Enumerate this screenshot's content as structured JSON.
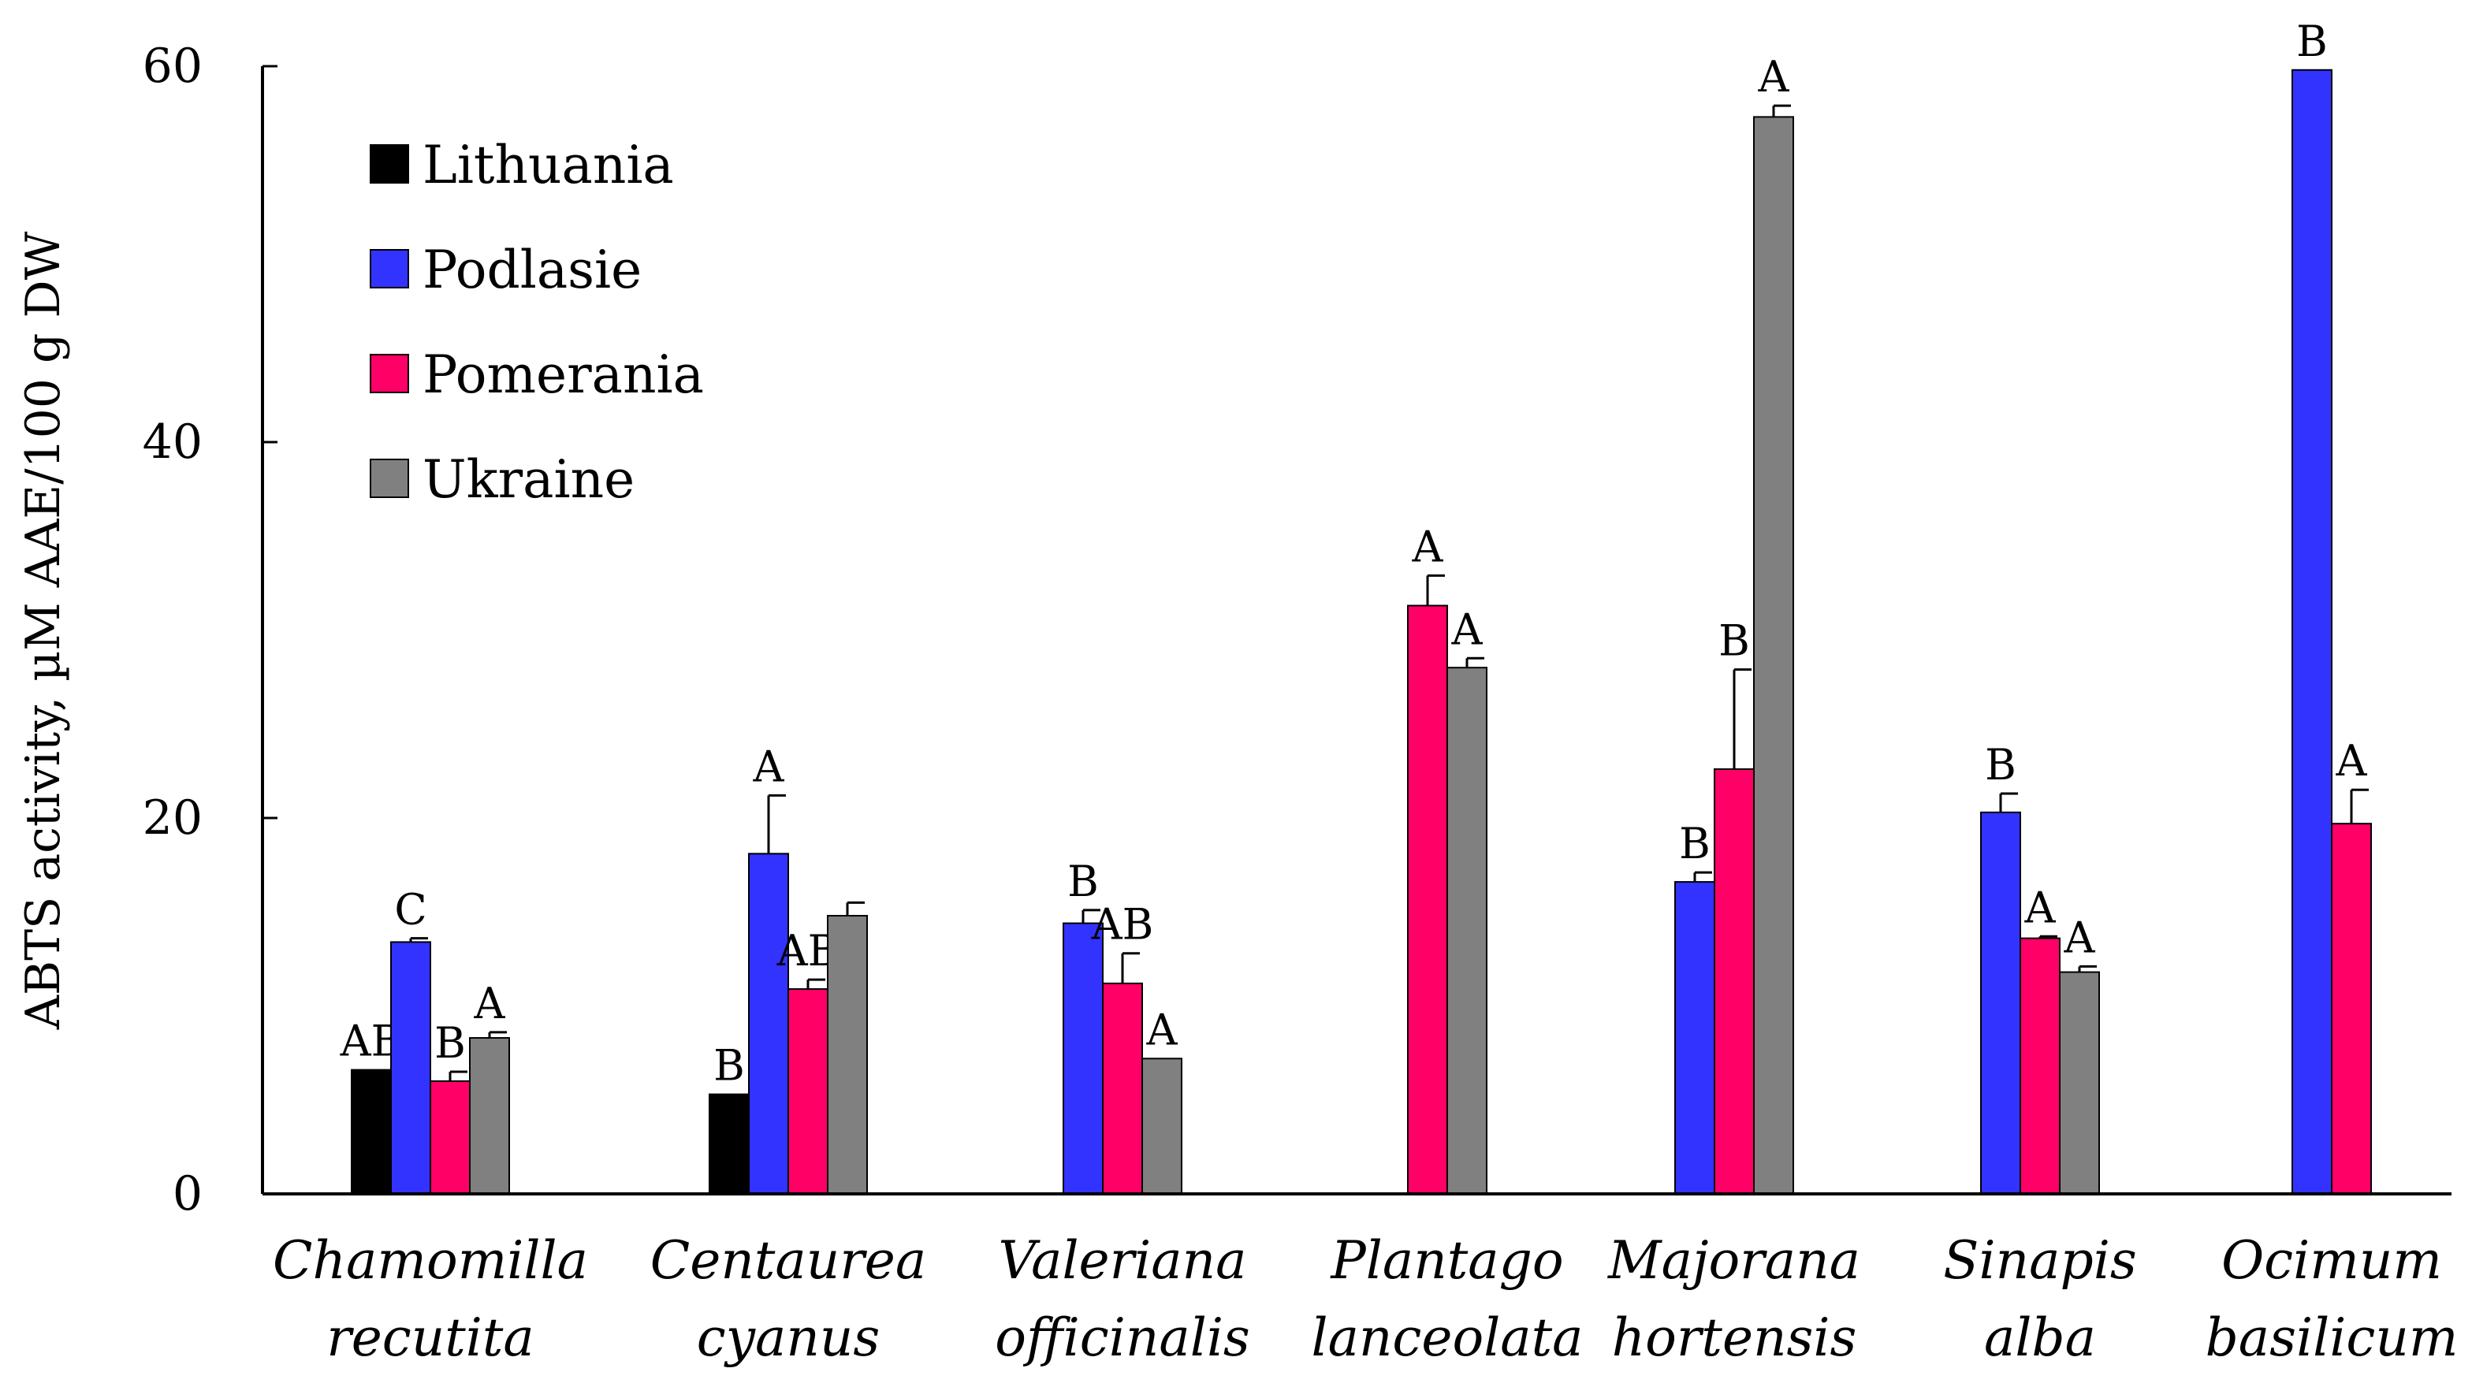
{
  "chart_data": {
    "type": "bar",
    "title": "",
    "xlabel": "",
    "ylabel": "ABTS activity, µM AAE/100 g DW",
    "ylim": [
      0,
      60
    ],
    "yticks": [
      "0",
      "20",
      "40",
      "60"
    ],
    "legend_position": "top-left",
    "categories": [
      [
        "Chamomilla",
        "recutita"
      ],
      [
        "Centaurea",
        "cyanus"
      ],
      [
        "Valeriana",
        "officinalis"
      ],
      [
        "Plantago",
        "lanceolata"
      ],
      [
        "Majorana",
        "hortensis"
      ],
      [
        "Sinapis",
        "alba"
      ],
      [
        "Ocimum",
        "basilicum"
      ]
    ],
    "series": [
      {
        "name": "Lithuania",
        "color": "#000000",
        "values": [
          6.6,
          5.3,
          null,
          null,
          null,
          null,
          null
        ],
        "errors": [
          0.0,
          0.0,
          null,
          null,
          null,
          null,
          null
        ],
        "letters": [
          "AB",
          "B",
          null,
          null,
          null,
          null,
          null
        ]
      },
      {
        "name": "Podlasie",
        "color": "#3333ff",
        "values": [
          13.4,
          18.1,
          14.4,
          null,
          16.6,
          20.3,
          59.8
        ],
        "errors": [
          0.2,
          3.1,
          0.7,
          null,
          0.5,
          1.0,
          0.0
        ],
        "letters": [
          "C",
          "A",
          "B",
          null,
          "B",
          "B",
          "B"
        ]
      },
      {
        "name": "Pomerania",
        "color": "#ff0066",
        "values": [
          6.0,
          10.9,
          11.2,
          31.3,
          22.6,
          13.6,
          19.7
        ],
        "errors": [
          0.5,
          0.5,
          1.6,
          1.6,
          5.3,
          0.1,
          1.8
        ],
        "letters": [
          "B",
          "AB",
          "AB",
          "A",
          "B",
          "A",
          "A"
        ]
      },
      {
        "name": "Ukraine",
        "color": "#808080",
        "values": [
          8.3,
          14.8,
          7.2,
          28.0,
          57.3,
          11.8,
          null
        ],
        "errors": [
          0.3,
          0.7,
          0.0,
          0.5,
          0.6,
          0.3,
          null
        ],
        "letters": [
          "A",
          null,
          "A",
          "A",
          "A",
          "A",
          null
        ]
      }
    ]
  }
}
